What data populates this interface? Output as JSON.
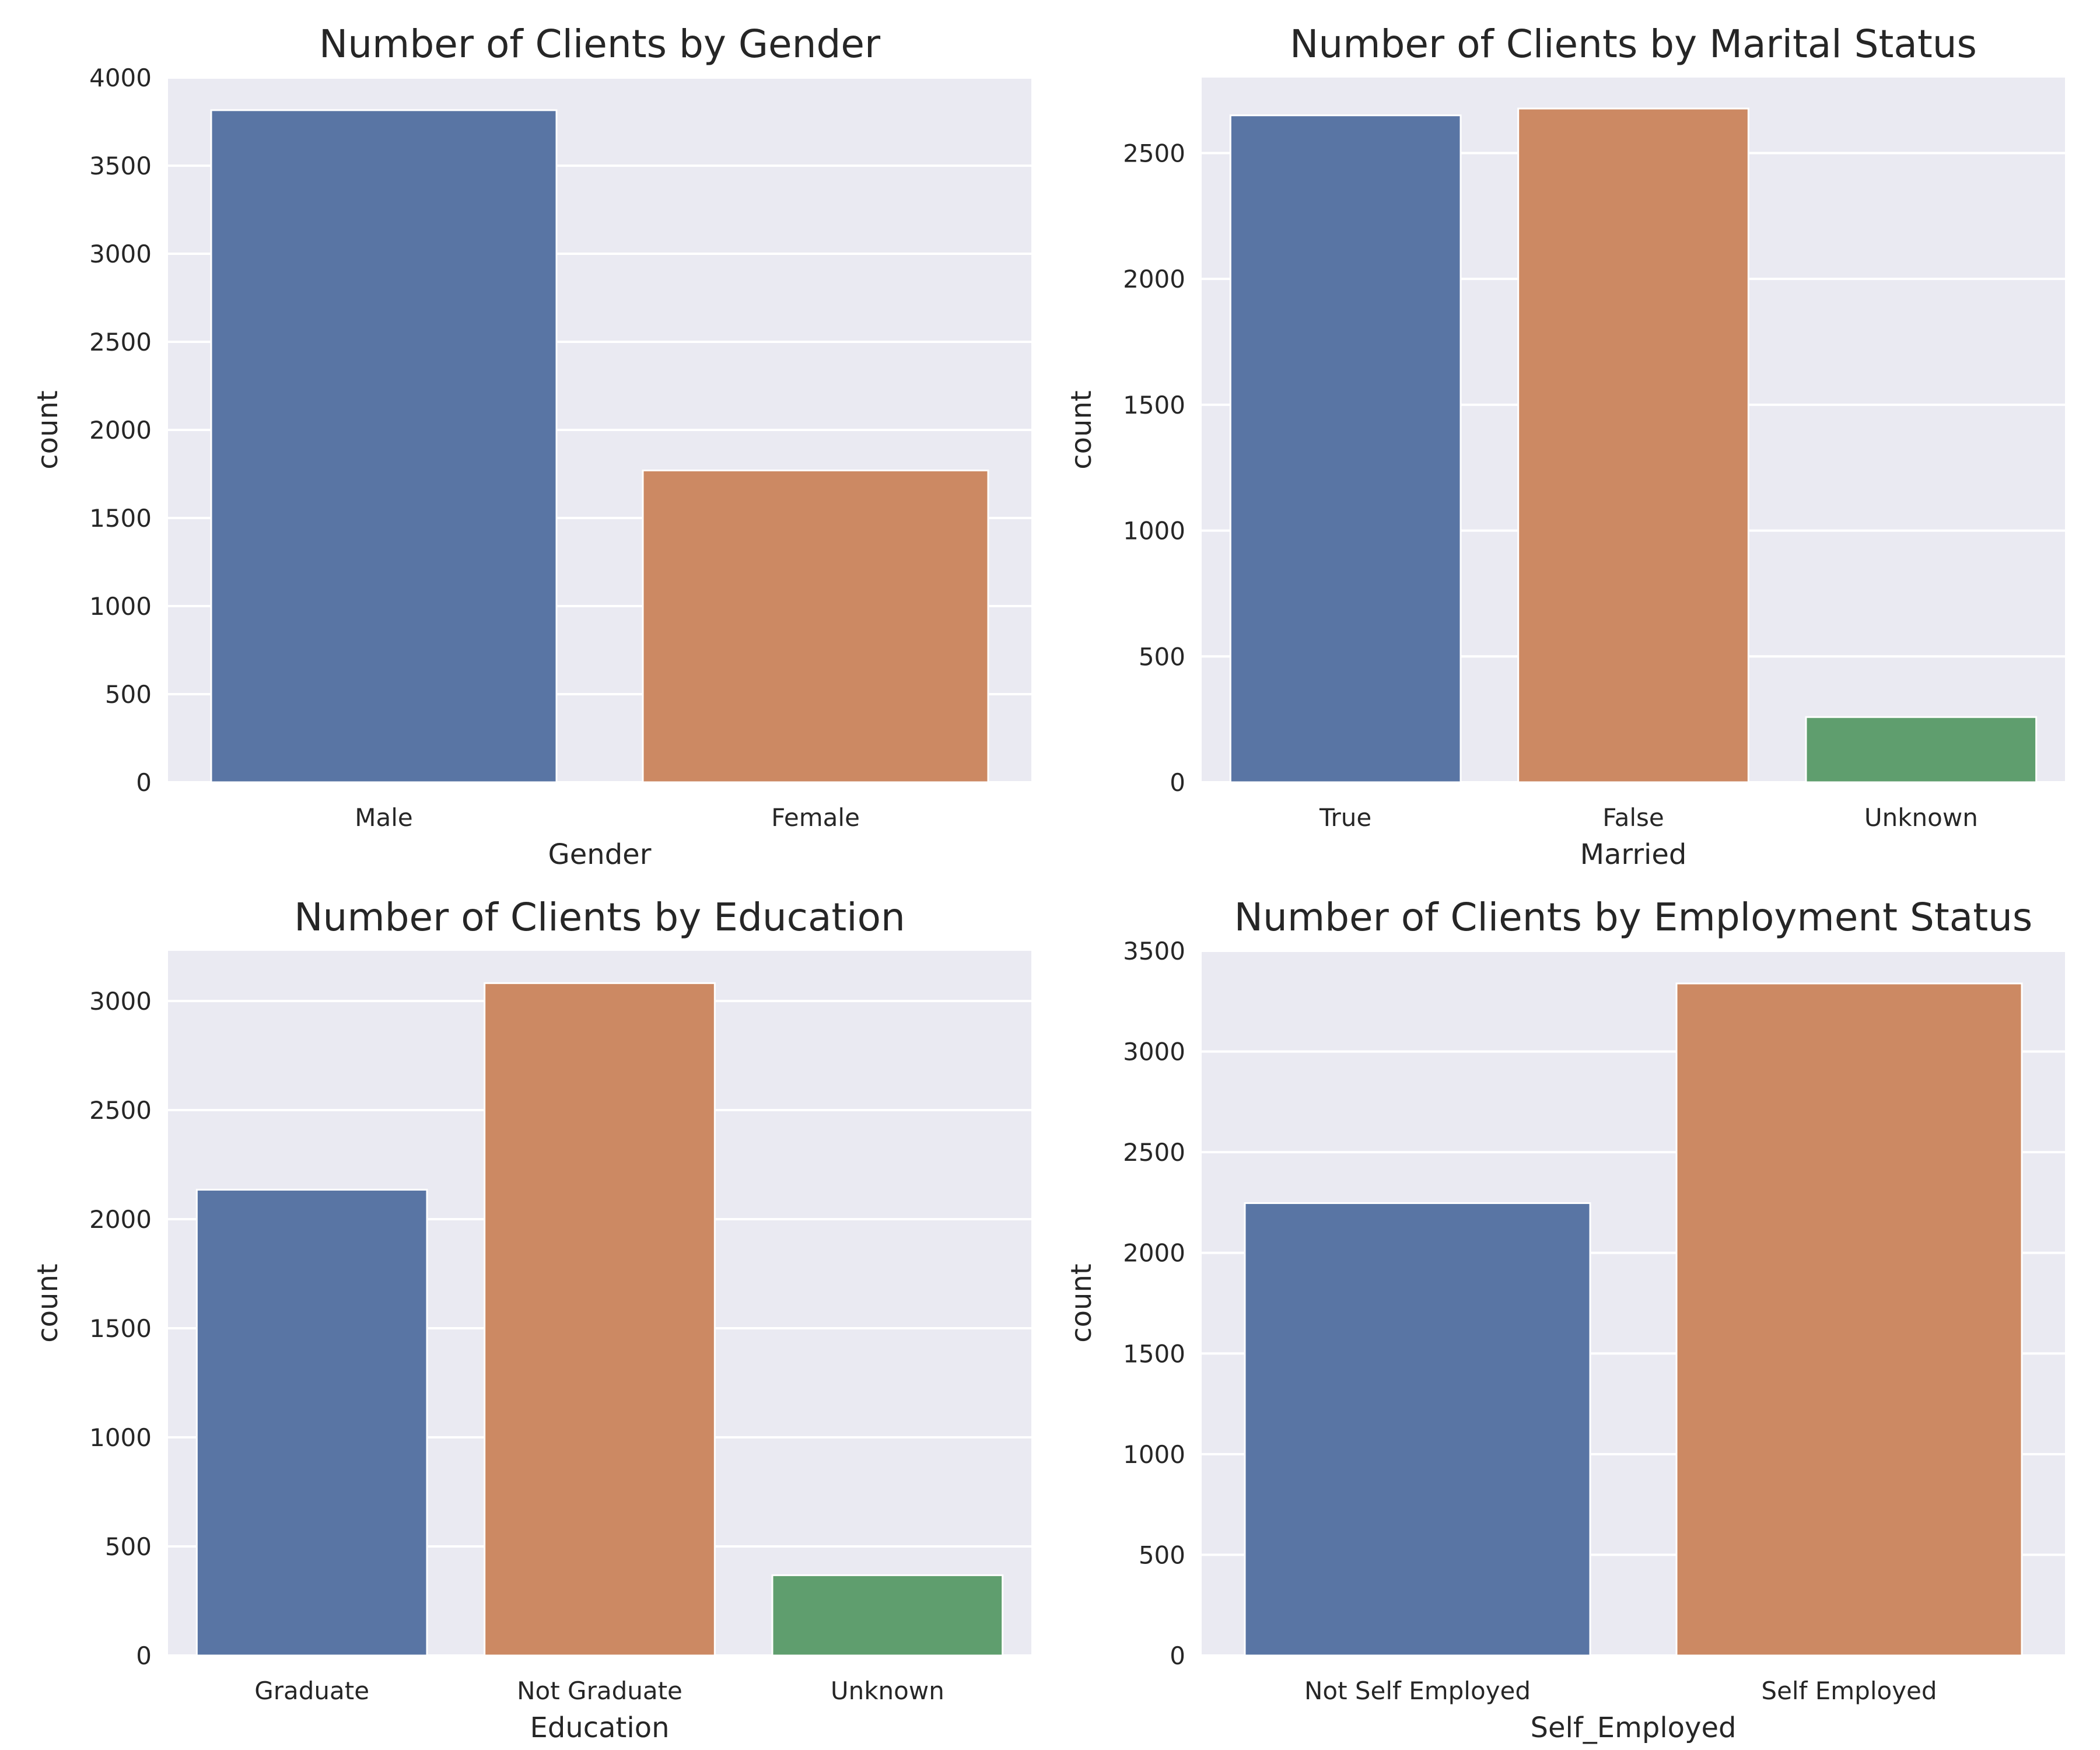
{
  "chart_data": [
    {
      "type": "bar",
      "title": "Number of Clients by Gender",
      "xlabel": "Gender",
      "ylabel": "count",
      "categories": [
        "Male",
        "Female"
      ],
      "values": [
        3815,
        1770
      ],
      "ylim": [
        0,
        4000
      ],
      "yticks": [
        0,
        500,
        1000,
        1500,
        2000,
        2500,
        3000,
        3500,
        4000
      ],
      "colors": [
        "#5975a4",
        "#cc8963"
      ],
      "grid": true
    },
    {
      "type": "bar",
      "title": "Number of Clients by Marital Status",
      "xlabel": "Married",
      "ylabel": "count",
      "categories": [
        "True",
        "False",
        "Unknown"
      ],
      "values": [
        2650,
        2677,
        259
      ],
      "ylim": [
        0,
        2800
      ],
      "yticks": [
        0,
        500,
        1000,
        1500,
        2000,
        2500
      ],
      "colors": [
        "#5975a4",
        "#cc8963",
        "#5f9e6e"
      ],
      "grid": true
    },
    {
      "type": "bar",
      "title": "Number of Clients by Education",
      "xlabel": "Education",
      "ylabel": "count",
      "categories": [
        "Graduate",
        "Not Graduate",
        "Unknown"
      ],
      "values": [
        2135,
        3082,
        368
      ],
      "ylim": [
        0,
        3230
      ],
      "yticks": [
        0,
        500,
        1000,
        1500,
        2000,
        2500,
        3000
      ],
      "colors": [
        "#5975a4",
        "#cc8963",
        "#5f9e6e"
      ],
      "grid": true
    },
    {
      "type": "bar",
      "title": "Number of Clients by Employment Status",
      "xlabel": "Self_Employed",
      "ylabel": "count",
      "categories": [
        "Not Self Employed",
        "Self Employed"
      ],
      "values": [
        2247,
        3338
      ],
      "ylim": [
        0,
        3500
      ],
      "yticks": [
        0,
        500,
        1000,
        1500,
        2000,
        2500,
        3000,
        3500
      ],
      "colors": [
        "#5975a4",
        "#cc8963"
      ],
      "grid": true
    }
  ]
}
